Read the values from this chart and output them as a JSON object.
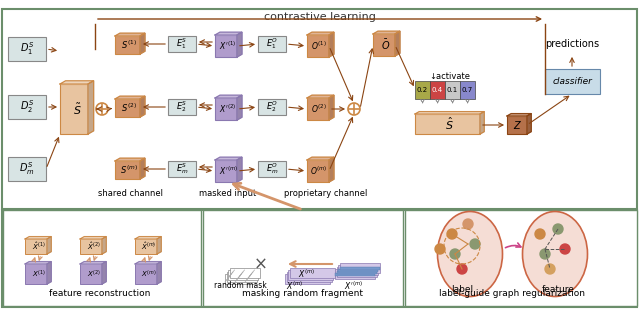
{
  "fig_width": 6.4,
  "fig_height": 3.09,
  "dpi": 100,
  "bg_color": "#ffffff",
  "border_color": "#6b8e6b",
  "top_panel_bg": "#ffffff",
  "bottom_panel_bg": "#ffffff",
  "colors": {
    "orange_box": "#d4956a",
    "orange_light": "#e8c4a0",
    "orange_dark": "#b5714a",
    "purple_box": "#b09ccc",
    "purple_light": "#d4c8e8",
    "purple_dark": "#8a78b0",
    "gray_box": "#b8c8c8",
    "gray_light": "#d8e4e4",
    "blue_box": "#a8c4d8",
    "blue_light": "#c8dce8",
    "pink_bg": "#f0d8d0",
    "red_cell": "#cc4444",
    "olive_cell": "#a8a848",
    "blue_cell": "#8888cc",
    "tan_cell": "#c8b888",
    "arrow_color": "#8b4513",
    "arrow_orange": "#d4956a",
    "text_color": "#333333",
    "border_dark": "#556655"
  },
  "title_text": "contrastive learning",
  "labels": {
    "D1S": "D_1^S",
    "D2S": "D_2^S",
    "DmS": "D_m^S",
    "shared_channel": "shared channel",
    "masked_input": "masked input",
    "proprietary_channel": "proprietary channel",
    "predictions": "predictions",
    "activate": "activate",
    "classifier": "classifier",
    "feature_reconstruction": "feature reconstruction",
    "masking_random_fragment": "masking random fragment",
    "label_guide": "label-guide graph regularization",
    "label": "label",
    "feature": "feature",
    "random_mask": "random mask"
  },
  "bar_values": [
    0.2,
    0.4,
    0.1,
    0.7
  ],
  "bar_colors": [
    "#a8a848",
    "#cc4444",
    "#c8c8c8",
    "#8888cc"
  ]
}
